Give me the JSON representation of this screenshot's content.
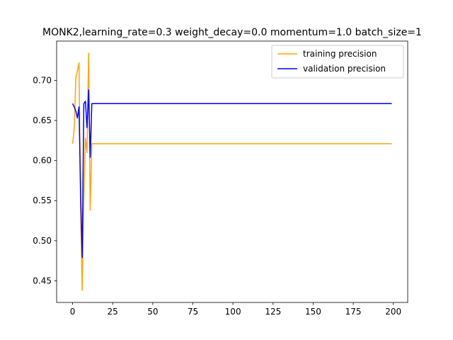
{
  "chart_data": {
    "type": "line",
    "title": "MONK2,learning_rate=0.3  weight_decay=0.0  momentum=1.0  batch_size=1",
    "xlabel": "",
    "ylabel": "",
    "xlim": [
      -9.95,
      208.95
    ],
    "ylim": [
      0.423,
      0.749
    ],
    "xticks": [
      0,
      25,
      50,
      75,
      100,
      125,
      150,
      175,
      200
    ],
    "yticks": [
      0.45,
      0.5,
      0.55,
      0.6,
      0.65,
      0.7
    ],
    "ytick_labels": [
      "0.45",
      "0.50",
      "0.55",
      "0.60",
      "0.65",
      "0.70"
    ],
    "grid": false,
    "legend_position": "upper-right",
    "series": [
      {
        "name": "training precision",
        "color": "#ffa500",
        "x": [
          0,
          1,
          2,
          3,
          4,
          5,
          6,
          7,
          8,
          9,
          10,
          11,
          12,
          13,
          199
        ],
        "y": [
          0.621,
          0.638,
          0.703,
          0.712,
          0.722,
          0.54,
          0.438,
          0.55,
          0.628,
          0.61,
          0.734,
          0.538,
          0.621,
          0.621,
          0.621
        ]
      },
      {
        "name": "validation precision",
        "color": "#0000ff",
        "x": [
          0,
          1,
          2,
          3,
          4,
          5,
          6,
          7,
          8,
          9,
          10,
          11,
          12,
          13,
          199
        ],
        "y": [
          0.671,
          0.667,
          0.662,
          0.653,
          0.667,
          0.56,
          0.479,
          0.671,
          0.674,
          0.641,
          0.688,
          0.604,
          0.671,
          0.671,
          0.671
        ]
      }
    ]
  }
}
